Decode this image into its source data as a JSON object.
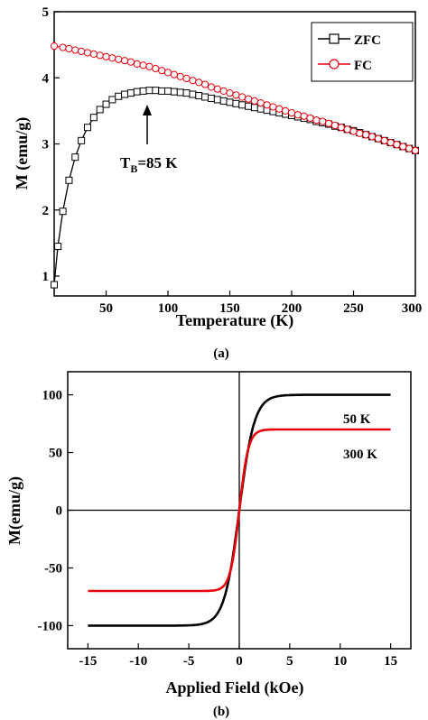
{
  "chart_data": [
    {
      "type": "scatter",
      "xlabel": "Temperature (K)",
      "ylabel": "M (emu/g)",
      "xlim": [
        8,
        300
      ],
      "ylim": [
        0.7,
        5
      ],
      "xticks": [
        50,
        100,
        150,
        200,
        250,
        300
      ],
      "xtick_labels": [
        "50",
        "100",
        "150",
        "200",
        "250",
        "300"
      ],
      "yticks": [
        1,
        2,
        3,
        4,
        5
      ],
      "ytick_labels": [
        "1",
        "2",
        "3",
        "4",
        "5"
      ],
      "legend": "top-right",
      "caption": "(a)",
      "annotation": {
        "prefix": "T",
        "sub": "B",
        "suffix": "=85 K",
        "x": 85,
        "y": 3.8
      },
      "series": [
        {
          "name": "ZFC",
          "color": "#000000",
          "marker": "square",
          "x": [
            8,
            11,
            15,
            20,
            25,
            30,
            35,
            40,
            45,
            50,
            55,
            60,
            65,
            70,
            75,
            80,
            85,
            90,
            95,
            100,
            105,
            110,
            115,
            120,
            125,
            130,
            135,
            140,
            145,
            150,
            155,
            160,
            165,
            170,
            175,
            180,
            185,
            190,
            195,
            200,
            205,
            210,
            215,
            220,
            225,
            230,
            235,
            240,
            245,
            250,
            255,
            260,
            265,
            270,
            275,
            280,
            285,
            290,
            295,
            300
          ],
          "y": [
            0.87,
            1.45,
            1.98,
            2.45,
            2.8,
            3.05,
            3.25,
            3.4,
            3.52,
            3.6,
            3.67,
            3.72,
            3.75,
            3.77,
            3.79,
            3.8,
            3.81,
            3.81,
            3.8,
            3.8,
            3.79,
            3.78,
            3.77,
            3.75,
            3.73,
            3.71,
            3.69,
            3.67,
            3.65,
            3.63,
            3.61,
            3.59,
            3.57,
            3.55,
            3.53,
            3.51,
            3.49,
            3.47,
            3.45,
            3.43,
            3.41,
            3.39,
            3.37,
            3.34,
            3.32,
            3.3,
            3.27,
            3.25,
            3.22,
            3.2,
            3.17,
            3.14,
            3.11,
            3.08,
            3.05,
            3.02,
            2.99,
            2.96,
            2.93,
            2.9
          ]
        },
        {
          "name": "FC",
          "color": "#e8000b",
          "marker": "circle",
          "x": [
            8,
            15,
            20,
            25,
            30,
            35,
            40,
            45,
            50,
            55,
            60,
            65,
            70,
            75,
            80,
            85,
            90,
            95,
            100,
            105,
            110,
            115,
            120,
            125,
            130,
            135,
            140,
            145,
            150,
            155,
            160,
            165,
            170,
            175,
            180,
            185,
            190,
            195,
            200,
            205,
            210,
            215,
            220,
            225,
            230,
            235,
            240,
            245,
            250,
            255,
            260,
            265,
            270,
            275,
            280,
            285,
            290,
            295,
            300
          ],
          "y": [
            4.48,
            4.46,
            4.44,
            4.42,
            4.4,
            4.38,
            4.36,
            4.34,
            4.32,
            4.3,
            4.28,
            4.26,
            4.24,
            4.21,
            4.19,
            4.17,
            4.14,
            4.11,
            4.08,
            4.05,
            4.02,
            3.99,
            3.96,
            3.93,
            3.9,
            3.86,
            3.83,
            3.8,
            3.77,
            3.74,
            3.71,
            3.68,
            3.65,
            3.62,
            3.59,
            3.56,
            3.53,
            3.5,
            3.47,
            3.44,
            3.42,
            3.39,
            3.36,
            3.34,
            3.31,
            3.28,
            3.25,
            3.22,
            3.19,
            3.16,
            3.14,
            3.11,
            3.08,
            3.05,
            3.02,
            2.99,
            2.96,
            2.93,
            2.9
          ]
        }
      ]
    },
    {
      "type": "line",
      "xlabel": "Applied Field (kOe)",
      "ylabel": "M(emu/g)",
      "xlim": [
        -17,
        17
      ],
      "ylim": [
        -120,
        120
      ],
      "xticks": [
        -15,
        -10,
        -5,
        0,
        5,
        10,
        15
      ],
      "xtick_labels": [
        "-15",
        "-10",
        "-5",
        "0",
        "5",
        "10",
        "15"
      ],
      "yticks": [
        -100,
        -50,
        0,
        50,
        100
      ],
      "ytick_labels": [
        "-100",
        "-50",
        "0",
        "50",
        "100"
      ],
      "caption": "(b)",
      "series": [
        {
          "name": "50 K",
          "color": "#000000",
          "ms": 100,
          "h0": 1.5
        },
        {
          "name": "300 K",
          "color": "#e8000b",
          "ms": 70,
          "h0": 0.9
        }
      ]
    }
  ]
}
